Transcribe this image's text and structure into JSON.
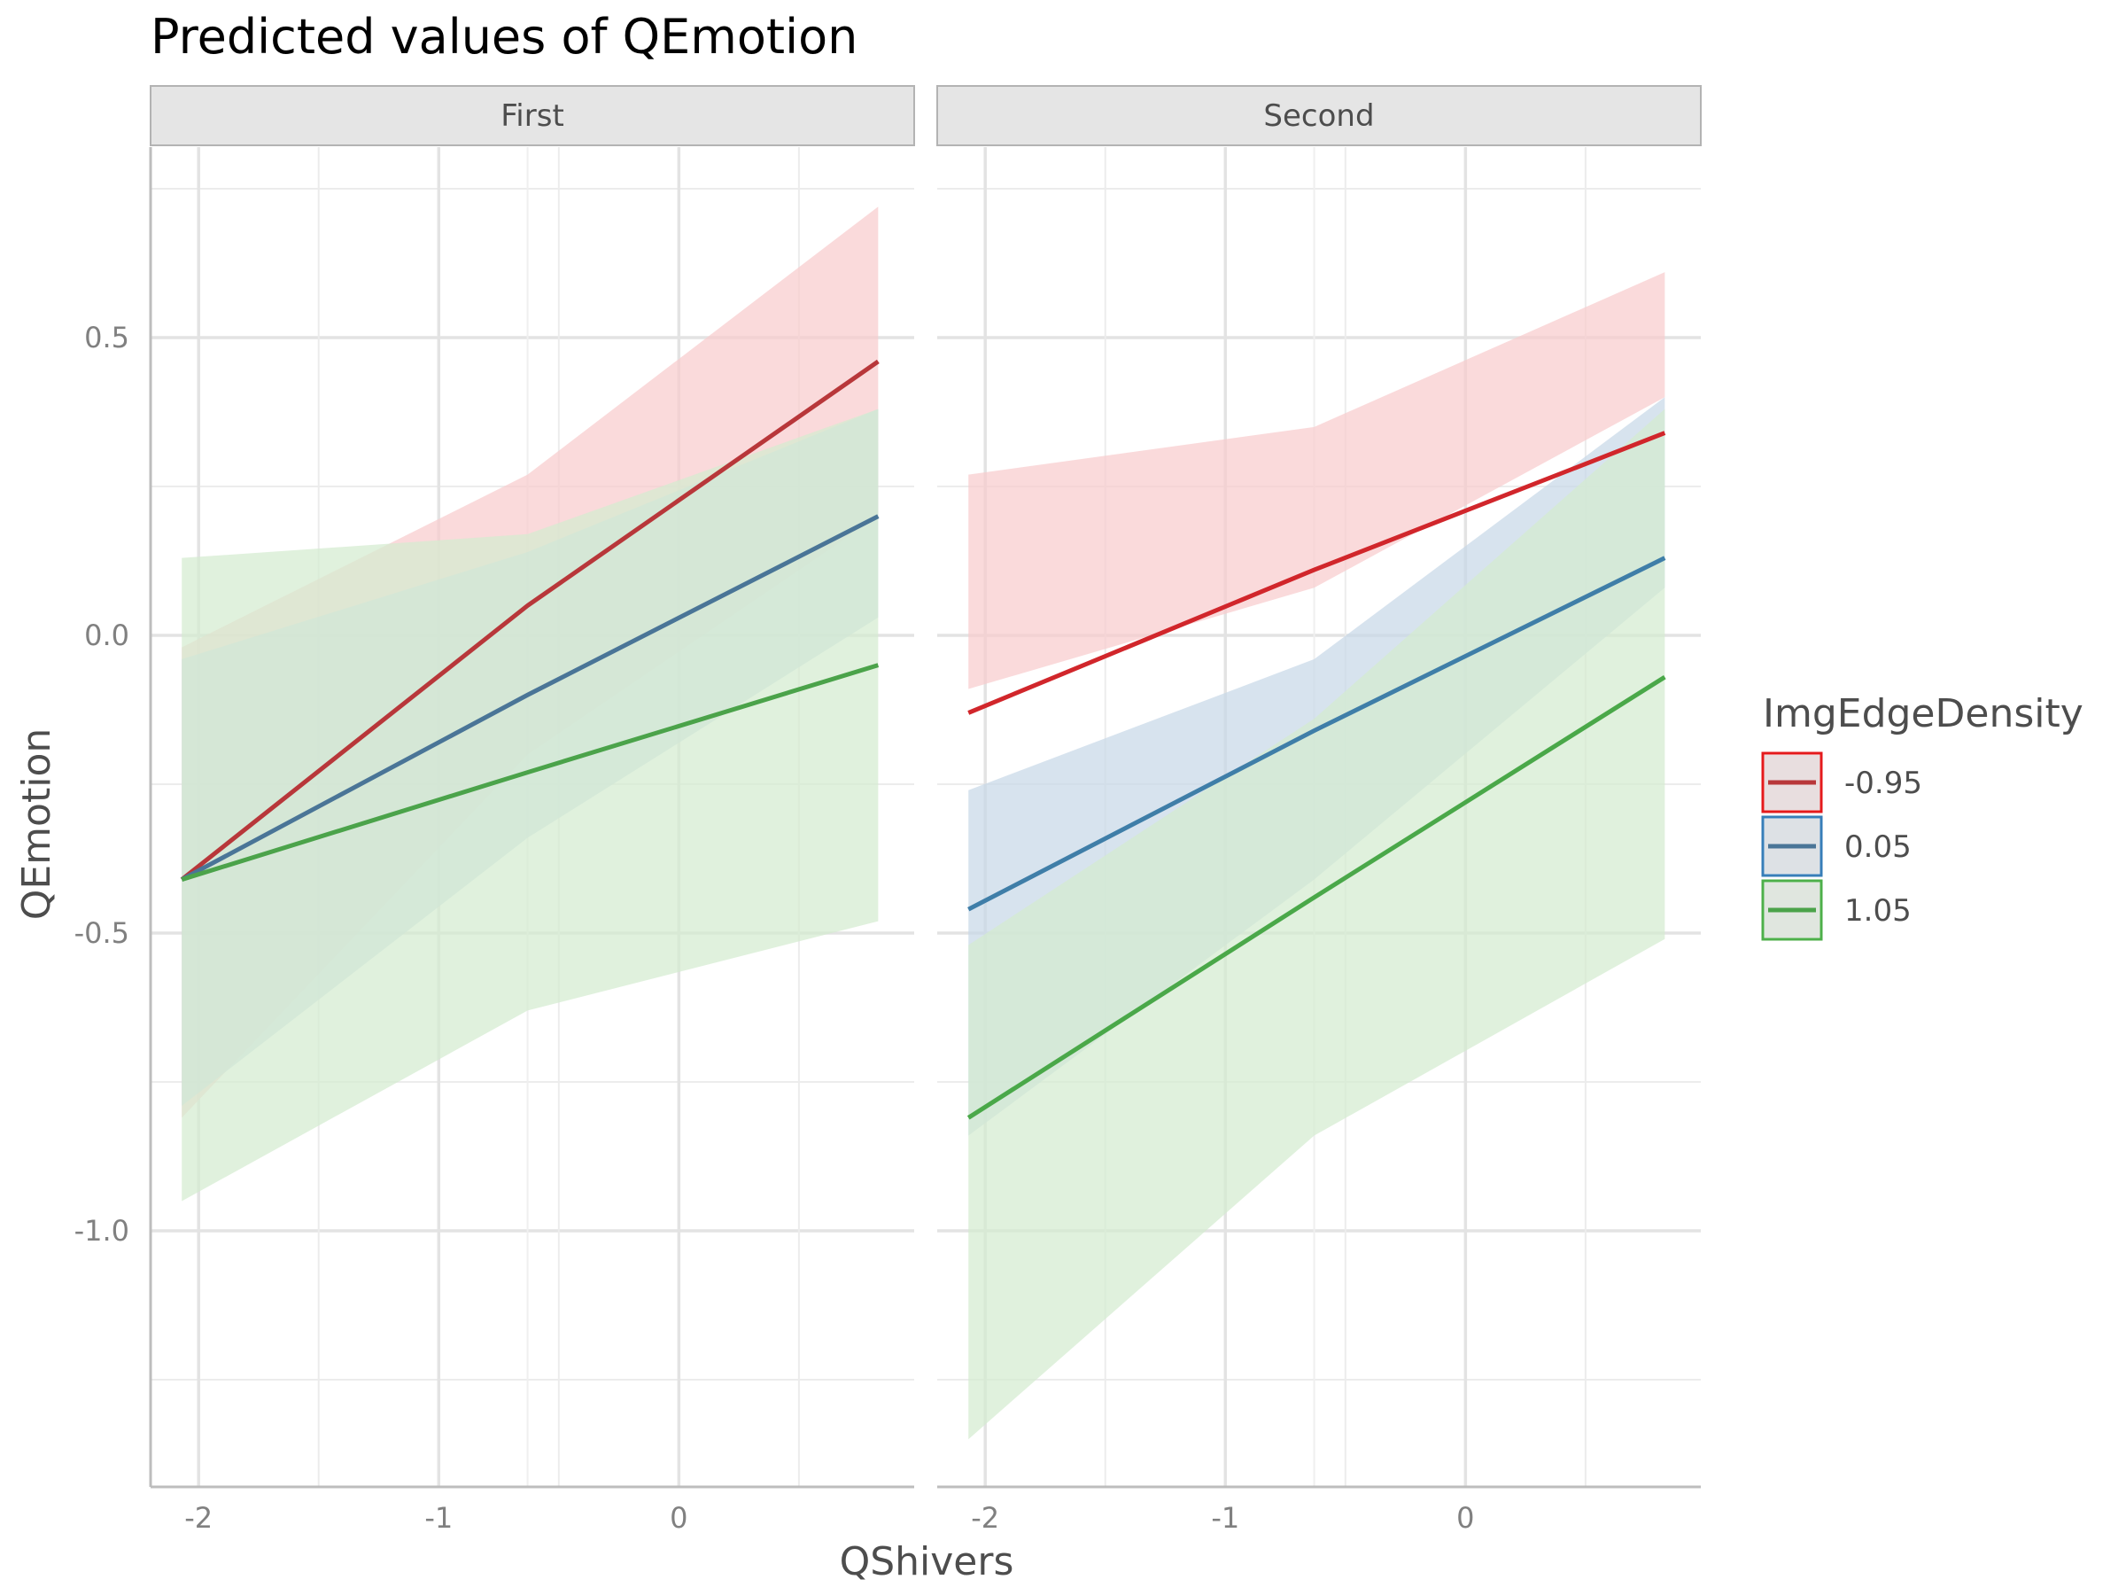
{
  "chart_data": {
    "type": "line",
    "title": "Predicted values of QEmotion",
    "xlabel": "QShivers",
    "ylabel": "QEmotion",
    "xlim": [
      -2.2,
      0.98
    ],
    "ylim": [
      -1.43,
      0.82
    ],
    "x_ticks": [
      -2,
      -1,
      0
    ],
    "x_tick_labels": [
      "-2",
      "-1",
      "0"
    ],
    "y_ticks": [
      0.5,
      0.0,
      -0.5,
      -1.0
    ],
    "y_tick_labels": [
      "0.5",
      "0.0",
      "-0.5",
      "-1.0"
    ],
    "legend": {
      "title": "ImgEdgeDensity",
      "position": "right"
    },
    "series_names": [
      "-0.95",
      "0.05",
      "1.05"
    ],
    "colors": [
      "#e41a1c",
      "#377eb8",
      "#4daf4a"
    ],
    "panels": [
      {
        "name": "First",
        "series": [
          {
            "name": "-0.95",
            "x": [
              -2.07,
              -0.63,
              0.83
            ],
            "y": [
              -0.41,
              0.05,
              0.46
            ],
            "lower": [
              -0.81,
              -0.2,
              0.2
            ],
            "upper": [
              -0.02,
              0.27,
              0.72
            ]
          },
          {
            "name": "0.05",
            "x": [
              -2.07,
              -0.63,
              0.83
            ],
            "y": [
              -0.41,
              -0.1,
              0.2
            ],
            "lower": [
              -0.79,
              -0.34,
              0.03
            ],
            "upper": [
              -0.04,
              0.14,
              0.38
            ]
          },
          {
            "name": "1.05",
            "x": [
              -2.07,
              -0.63,
              0.83
            ],
            "y": [
              -0.41,
              -0.23,
              -0.05
            ],
            "lower": [
              -0.95,
              -0.63,
              -0.48
            ],
            "upper": [
              0.13,
              0.17,
              0.38
            ]
          }
        ]
      },
      {
        "name": "Second",
        "series": [
          {
            "name": "-0.95",
            "x": [
              -2.07,
              -0.63,
              0.83
            ],
            "y": [
              -0.13,
              0.11,
              0.34
            ],
            "lower": [
              -0.09,
              0.08,
              0.4
            ],
            "upper": [
              0.27,
              0.35,
              0.61
            ]
          },
          {
            "name": "0.05",
            "x": [
              -2.07,
              -0.63,
              0.83
            ],
            "y": [
              -0.46,
              -0.16,
              0.13
            ],
            "lower": [
              -0.84,
              -0.41,
              0.08
            ],
            "upper": [
              -0.26,
              -0.04,
              0.4
            ]
          },
          {
            "name": "1.05",
            "x": [
              -2.07,
              -0.63,
              0.83
            ],
            "y": [
              -0.81,
              -0.44,
              -0.07
            ],
            "lower": [
              -1.35,
              -0.84,
              -0.51
            ],
            "upper": [
              -0.52,
              -0.14,
              0.38
            ]
          }
        ]
      }
    ]
  }
}
